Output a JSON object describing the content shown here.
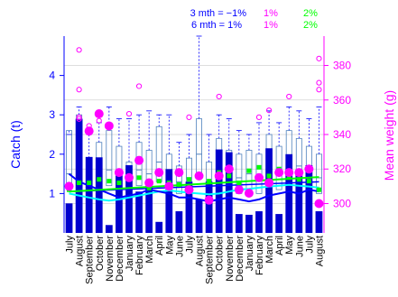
{
  "chart_data": {
    "type": "bar",
    "ylabel": "Catch (t)",
    "ylabel_right": "Mean weight (g)",
    "header": {
      "rows": [
        {
          "label": "3 mth = −1%",
          "pct1": "1%",
          "pct2": "2%"
        },
        {
          "label": "6 mth = 1%",
          "pct1": "1%",
          "pct2": "2%"
        }
      ]
    },
    "left_axis": {
      "ylim": [
        0,
        5
      ],
      "ticks": [
        "1",
        "2",
        "3",
        "4"
      ]
    },
    "right_axis": {
      "ylim": [
        283,
        397
      ],
      "ticks": [
        "300",
        "320",
        "340",
        "360",
        "380"
      ]
    },
    "categories": [
      "July",
      "August",
      "September",
      "October",
      "November",
      "December",
      "January",
      "February",
      "March",
      "April",
      "May",
      "June",
      "July",
      "August",
      "September",
      "October",
      "November",
      "December",
      "January",
      "February",
      "March",
      "April",
      "May",
      "June",
      "July",
      "August"
    ],
    "series": [
      {
        "values": [
          0.75,
          2.9,
          1.93,
          1.92,
          0.2,
          1.58,
          1.72,
          1.05,
          1.2,
          0.28,
          1.62,
          0.55,
          1.3,
          0.85,
          1.3,
          2.12,
          2.05,
          0.48,
          0.46,
          0.55,
          2.15,
          0.48,
          2.0,
          1.6,
          1.72,
          0.55
        ]
      }
    ],
    "boxes": [
      [
        1.1,
        1.5,
        2.6
      ],
      [
        1.5,
        2.2,
        3.0
      ],
      [
        0.9,
        1.2,
        1.9
      ],
      [
        1.0,
        1.5,
        2.3
      ],
      [
        1.2,
        1.6,
        2.6
      ],
      [
        1.1,
        1.5,
        2.2
      ],
      [
        1.0,
        1.3,
        1.8
      ],
      [
        1.2,
        1.6,
        2.3
      ],
      [
        1.1,
        1.5,
        2.1
      ],
      [
        1.3,
        1.8,
        2.7
      ],
      [
        1.1,
        1.5,
        2.0
      ],
      [
        1.0,
        1.3,
        1.7
      ],
      [
        1.1,
        1.4,
        1.9
      ],
      [
        1.4,
        2.0,
        2.9
      ],
      [
        1.0,
        1.3,
        1.8
      ],
      [
        1.2,
        1.7,
        2.4
      ],
      [
        1.1,
        1.5,
        2.1
      ],
      [
        1.0,
        1.4,
        2.0
      ],
      [
        1.1,
        1.5,
        2.1
      ],
      [
        1.0,
        1.4,
        2.0
      ],
      [
        1.2,
        1.7,
        2.5
      ],
      [
        1.1,
        1.5,
        2.2
      ],
      [
        1.3,
        1.8,
        2.6
      ],
      [
        1.2,
        1.7,
        2.4
      ],
      [
        1.1,
        1.5,
        2.2
      ],
      [
        1.0,
        1.4,
        2.0
      ]
    ],
    "box_whisker_top": [
      2.5,
      3.2,
      2.5,
      2.8,
      3.2,
      2.9,
      2.9,
      3.0,
      3.1,
      3.0,
      3.0,
      2.3,
      2.5,
      5.0,
      2.5,
      3.0,
      2.9,
      2.6,
      2.5,
      2.8,
      3.1,
      2.8,
      3.2,
      3.1,
      2.9,
      3.2
    ],
    "mean_weight": [
      310,
      389,
      342,
      352,
      345,
      318,
      315,
      325,
      312,
      318,
      310,
      318,
      308,
      316,
      302,
      316,
      320,
      308,
      306,
      315,
      312,
      318,
      318,
      318,
      320,
      300
    ],
    "extra_circles": [
      [
        1,
        366
      ],
      [
        1,
        349
      ],
      [
        1,
        350
      ],
      [
        2,
        345
      ],
      [
        3,
        348
      ],
      [
        6,
        352
      ],
      [
        7,
        368
      ],
      [
        12,
        350
      ],
      [
        15,
        362
      ],
      [
        19,
        350
      ],
      [
        20,
        354
      ],
      [
        22,
        362
      ],
      [
        25,
        384
      ],
      [
        25,
        370
      ],
      [
        25,
        366
      ]
    ],
    "green_squares": [
      308,
      312,
      312,
      314,
      313,
      312,
      316,
      315,
      309,
      313,
      312,
      311,
      314,
      316,
      313,
      318,
      316,
      312,
      319,
      321,
      316,
      320,
      315,
      314,
      313,
      308
    ],
    "line_blue": [
      1.5,
      1.3,
      1.2,
      1.1,
      1.0,
      0.9,
      0.95,
      1.0,
      1.1,
      1.05,
      1.0,
      0.9,
      0.9,
      0.85,
      0.8,
      0.85,
      0.9,
      0.85,
      0.8,
      0.85,
      0.95,
      1.0,
      1.05,
      1.0,
      1.1,
      1.05
    ],
    "line_cyan": [
      1.0,
      0.95,
      0.9,
      0.85,
      0.82,
      0.85,
      0.9,
      0.95,
      1.0,
      1.05,
      1.08,
      1.05,
      1.02,
      1.0,
      0.98,
      1.0,
      1.05,
      1.1,
      1.12,
      1.15,
      1.18,
      1.2,
      1.22,
      1.2,
      1.18,
      1.15
    ],
    "trend_green": [
      1.05,
      1.42
    ],
    "trend_blue": [
      1.05,
      1.3
    ],
    "colors": {
      "bar": "#0000CD",
      "blue": "#0000FF",
      "magenta": "#FF00FF",
      "green": "#00FF00",
      "cyan": "#00FFFF",
      "grid": "#D3D3D3"
    }
  }
}
